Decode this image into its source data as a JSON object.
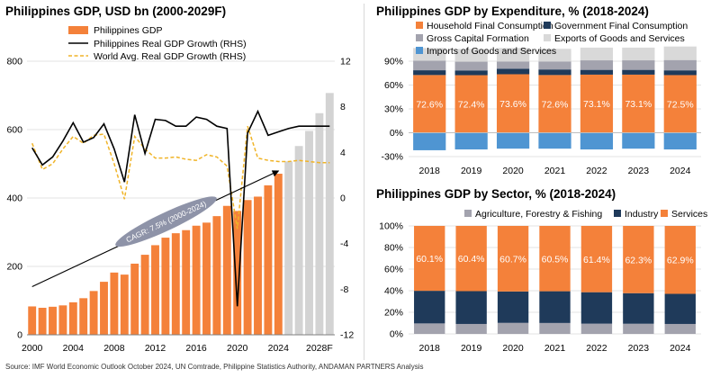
{
  "titles": {
    "left": "Philippines GDP, USD bn (2000-2029F)",
    "top_right": "Philippines GDP by Expenditure, % (2018-2024)",
    "bottom_right": "Philippines GDP by Sector, % (2018-2024)"
  },
  "source": "Source: IMF World Economic Outlook October 2024, UN Comtrade, Philippine Statistics Authority, ANDAMAN PARTNERS Analysis",
  "colors": {
    "orange": "#F4813A",
    "forecast_gray": "#D3D3D3",
    "navy": "#1F3A5A",
    "mid_gray": "#A3A3AE",
    "light_gray": "#D9D9D9",
    "blue": "#4F95D2",
    "world_dash": "#F0B428",
    "grid": "#E3E3E3"
  },
  "chart_data": [
    {
      "type": "bar",
      "title": "Philippines GDP, USD bn (2000-2029F)",
      "x": [
        2000,
        2001,
        2002,
        2003,
        2004,
        2005,
        2006,
        2007,
        2008,
        2009,
        2010,
        2011,
        2012,
        2013,
        2014,
        2015,
        2016,
        2017,
        2018,
        2019,
        2020,
        2021,
        2022,
        2023,
        2024,
        2025,
        2026,
        2027,
        2028,
        2029
      ],
      "x_tick_labels": [
        "2000",
        "2004",
        "2008",
        "2012",
        "2016",
        "2020",
        "2024",
        "2028F"
      ],
      "forecast_from": 2025,
      "ylim": [
        0,
        800
      ],
      "y_ticks": [
        0,
        200,
        400,
        600,
        800
      ],
      "y2lim": [
        -12,
        12
      ],
      "y2_ticks": [
        -12,
        -8,
        -4,
        0,
        4,
        8,
        12
      ],
      "series": [
        {
          "name": "Philippines GDP",
          "kind": "bar",
          "axis": "left",
          "values": [
            83,
            79,
            82,
            86,
            95,
            107,
            128,
            155,
            182,
            176,
            208,
            234,
            262,
            284,
            297,
            306,
            319,
            328,
            347,
            377,
            362,
            394,
            404,
            437,
            471,
            507,
            552,
            596,
            648,
            707
          ]
        },
        {
          "name": "Philippines Real GDP Growth (RHS)",
          "kind": "line",
          "axis": "right",
          "values": [
            4.4,
            2.9,
            3.6,
            5.0,
            6.6,
            4.9,
            5.3,
            6.5,
            4.3,
            1.4,
            7.3,
            3.9,
            6.9,
            6.8,
            6.3,
            6.3,
            7.1,
            6.9,
            6.3,
            6.1,
            -9.5,
            5.7,
            7.6,
            5.5,
            5.8,
            6.1,
            6.3,
            6.3,
            6.3,
            6.3
          ]
        },
        {
          "name": "World Avg. Real GDP Growth (RHS)",
          "kind": "line",
          "axis": "right",
          "dashed": true,
          "values": [
            4.8,
            2.5,
            3.0,
            4.3,
            5.4,
            4.8,
            5.5,
            5.6,
            3.0,
            -0.1,
            5.4,
            4.3,
            3.5,
            3.5,
            3.6,
            3.4,
            3.3,
            3.8,
            3.6,
            2.8,
            -2.7,
            6.3,
            3.5,
            3.3,
            3.2,
            3.2,
            3.3,
            3.2,
            3.1,
            3.1
          ]
        }
      ],
      "annotation": {
        "text": "CAGR: 7.5% (2000-2024)"
      }
    },
    {
      "type": "bar",
      "title": "Philippines GDP by Expenditure, % (2018-2024)",
      "categories": [
        "2018",
        "2019",
        "2020",
        "2021",
        "2022",
        "2023",
        "2024"
      ],
      "ylim": [
        -30,
        90
      ],
      "y_ticks": [
        -30,
        0,
        30,
        60,
        90
      ],
      "y_tick_labels": [
        "-30%",
        "0%",
        "30%",
        "60%",
        "90%"
      ],
      "series": [
        {
          "name": "Household Final Consumption",
          "values": [
            72.6,
            72.4,
            73.6,
            72.6,
            73.1,
            73.1,
            72.5
          ],
          "labels": [
            "72.6%",
            "72.4%",
            "73.6%",
            "72.6%",
            "73.1%",
            "73.1%",
            "72.5%"
          ]
        },
        {
          "name": "Government Final Consumption",
          "values": [
            6,
            6,
            7,
            7,
            6,
            6,
            6
          ]
        },
        {
          "name": "Gross Capital Formation",
          "values": [
            12,
            11,
            9,
            10,
            12,
            12,
            13
          ]
        },
        {
          "name": "Exports of Goods and Services",
          "values": [
            16,
            16,
            17,
            16,
            16,
            16,
            17
          ]
        },
        {
          "name": "Imports of Goods and Services",
          "values": [
            -22,
            -21,
            -20,
            -20,
            -21,
            -20,
            -21
          ]
        }
      ]
    },
    {
      "type": "bar",
      "title": "Philippines GDP by Sector, % (2018-2024)",
      "categories": [
        "2018",
        "2019",
        "2020",
        "2021",
        "2022",
        "2023",
        "2024"
      ],
      "ylim": [
        0,
        100
      ],
      "y_ticks": [
        0,
        20,
        40,
        60,
        80,
        100
      ],
      "y_tick_labels": [
        "0%",
        "20%",
        "40%",
        "60%",
        "80%",
        "100%"
      ],
      "series": [
        {
          "name": "Agriculture, Forestry & Fishing",
          "values": [
            9.7,
            9.2,
            10.2,
            10.1,
            9.5,
            9.4,
            9.2
          ]
        },
        {
          "name": "Industry",
          "values": [
            30.2,
            30.4,
            29.1,
            29.4,
            29.1,
            28.3,
            27.9
          ]
        },
        {
          "name": "Services",
          "values": [
            60.1,
            60.4,
            60.7,
            60.5,
            61.4,
            62.3,
            62.9
          ],
          "labels": [
            "60.1%",
            "60.4%",
            "60.7%",
            "60.5%",
            "61.4%",
            "62.3%",
            "62.9%"
          ]
        }
      ]
    }
  ]
}
